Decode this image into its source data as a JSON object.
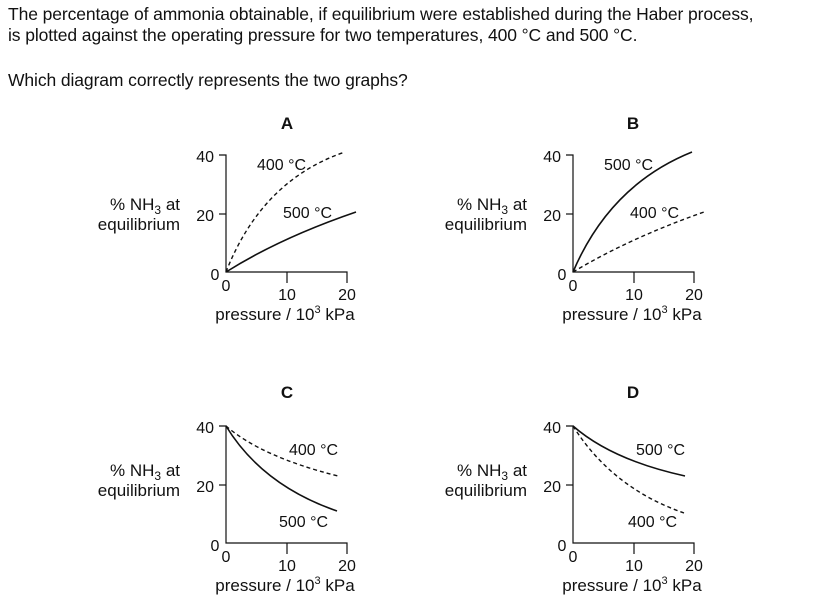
{
  "question": {
    "line1": "The percentage of ammonia obtainable, if equilibrium were established during the Haber process,",
    "line2": "is plotted against the operating pressure for two temperatures, 400 °C and 500 °C.",
    "line3": "Which diagram correctly represents the two graphs?"
  },
  "y_label": {
    "line1_prefix": "% NH",
    "subscript": "3",
    "line1_suffix": " at",
    "line2": "equilibrium"
  },
  "x_label": {
    "prefix": "pressure / 10",
    "sup": "3",
    "suffix": " kPa"
  },
  "y_ticks": [
    "0",
    "20",
    "40"
  ],
  "x_ticks": [
    "0",
    "10",
    "20"
  ],
  "colors": {
    "ink": "#111111",
    "background": "#ffffff"
  },
  "options": [
    {
      "id": "A",
      "label": "A",
      "solid_temp": "500 °C",
      "dashed_temp": "400 °C",
      "trend": "increasing",
      "higher": "dashed"
    },
    {
      "id": "B",
      "label": "B",
      "solid_temp": "500 °C",
      "dashed_temp": "400 °C",
      "trend": "increasing",
      "higher": "solid"
    },
    {
      "id": "C",
      "label": "C",
      "solid_temp": "500 °C",
      "dashed_temp": "400 °C",
      "trend": "decreasing",
      "higher": "dashed"
    },
    {
      "id": "D",
      "label": "D",
      "solid_temp": "500 °C",
      "dashed_temp": "400 °C",
      "trend": "decreasing",
      "higher": "solid"
    }
  ]
}
